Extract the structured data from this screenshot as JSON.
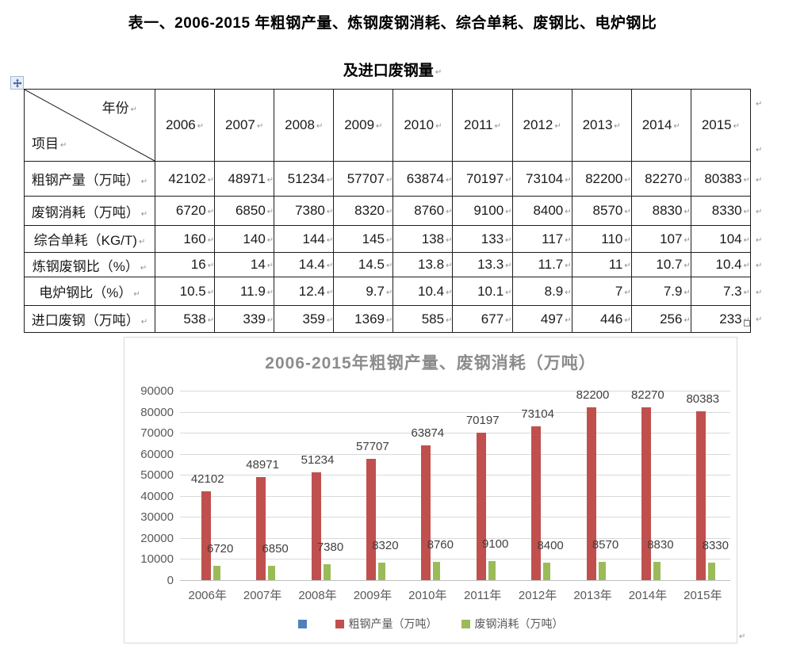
{
  "document": {
    "title_line1": "表一、2006-2015 年粗钢产量、炼钢废钢消耗、综合单耗、废钢比、电炉钢比",
    "title_line2": "及进口废钢量"
  },
  "marks": {
    "pilcrow": "↵"
  },
  "table": {
    "corner": {
      "top_right": "年份",
      "bottom_left": "项目"
    },
    "years": [
      "2006",
      "2007",
      "2008",
      "2009",
      "2010",
      "2011",
      "2012",
      "2013",
      "2014",
      "2015"
    ],
    "rows": [
      {
        "label": "粗钢产量（万吨）",
        "values": [
          "42102",
          "48971",
          "51234",
          "57707",
          "63874",
          "70197",
          "73104",
          "82200",
          "82270",
          "80383"
        ]
      },
      {
        "label": "废钢消耗（万吨）",
        "values": [
          "6720",
          "6850",
          "7380",
          "8320",
          "8760",
          "9100",
          "8400",
          "8570",
          "8830",
          "8330"
        ]
      },
      {
        "label": "综合单耗（KG/T)",
        "values": [
          "160",
          "140",
          "144",
          "145",
          "138",
          "133",
          "117",
          "110",
          "107",
          "104"
        ]
      },
      {
        "label": "炼钢废钢比（%）",
        "values": [
          "16",
          "14",
          "14.4",
          "14.5",
          "13.8",
          "13.3",
          "11.7",
          "11",
          "10.7",
          "10.4"
        ]
      },
      {
        "label": "电炉钢比（%）",
        "values": [
          "10.5",
          "11.9",
          "12.4",
          "9.7",
          "10.4",
          "10.1",
          "8.9",
          "7",
          "7.9",
          "7.3"
        ]
      },
      {
        "label": "进口废钢（万吨）",
        "values": [
          "538",
          "339",
          "359",
          "1369",
          "585",
          "677",
          "497",
          "446",
          "256",
          "233"
        ]
      }
    ]
  },
  "chart_data": {
    "type": "bar",
    "title": "2006-2015年粗钢产量、废钢消耗（万吨）",
    "categories": [
      "2006年",
      "2007年",
      "2008年",
      "2009年",
      "2010年",
      "2011年",
      "2012年",
      "2013年",
      "2014年",
      "2015年"
    ],
    "series": [
      {
        "name": "粗钢产量（万吨）",
        "color": "#C0504D",
        "values": [
          42102,
          48971,
          51234,
          57707,
          63874,
          70197,
          73104,
          82200,
          82270,
          80383
        ]
      },
      {
        "name": "废钢消耗（万吨）",
        "color": "#9BBB59",
        "values": [
          6720,
          6850,
          7380,
          8320,
          8760,
          9100,
          8400,
          8570,
          8830,
          8330
        ]
      }
    ],
    "legend": [
      {
        "label": "",
        "color": "#4F81BD"
      },
      {
        "label": "粗钢产量（万吨）",
        "color": "#C0504D"
      },
      {
        "label": "废钢消耗（万吨）",
        "color": "#9BBB59"
      }
    ],
    "ylim": [
      0,
      90000
    ],
    "yticks": [
      0,
      10000,
      20000,
      30000,
      40000,
      50000,
      60000,
      70000,
      80000,
      90000
    ],
    "grid": true,
    "legend_position": "bottom",
    "data_labels": true
  },
  "colors": {
    "grid": "#D9D9D9",
    "axis_text": "#595959",
    "chart_title": "#8C8C8C",
    "data_label": "#3F3F3F",
    "table_border": "#1C1C1C",
    "pilcrow": "#8F8F8F"
  }
}
